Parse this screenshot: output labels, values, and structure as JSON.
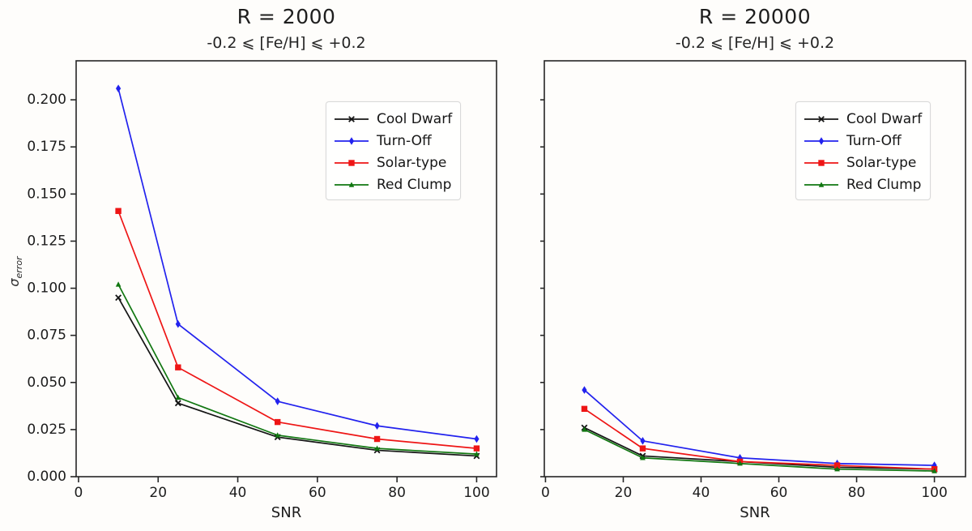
{
  "figure": {
    "background": "#fefdfb",
    "axis_color": "#262626",
    "tick_text_color": "#1c1c1c"
  },
  "chart_data": [
    {
      "type": "line",
      "title": "R = 2000",
      "subtitle": "-0.2 ⩽ [Fe/H] ⩽ +0.2",
      "xlabel": "SNR",
      "ylabel": "σ_error",
      "x": [
        10,
        25,
        50,
        75,
        100
      ],
      "xticks": [
        0,
        20,
        40,
        60,
        80,
        100
      ],
      "yticks": [
        "0.000",
        "0.025",
        "0.050",
        "0.075",
        "0.100",
        "0.125",
        "0.150",
        "0.175",
        "0.200"
      ],
      "xlim": [
        -0.6,
        105
      ],
      "ylim": [
        0,
        0.2207
      ],
      "grid": false,
      "show_y_tick_labels": true,
      "legend_position": "upper right",
      "series": [
        {
          "name": "Cool Dwarf",
          "color": "#141414",
          "marker": "x",
          "values": [
            0.095,
            0.039,
            0.021,
            0.014,
            0.011
          ]
        },
        {
          "name": "Turn-Off",
          "color": "#2222ee",
          "marker": "diamond",
          "values": [
            0.206,
            0.081,
            0.04,
            0.027,
            0.02
          ]
        },
        {
          "name": "Solar-type",
          "color": "#ee1515",
          "marker": "square",
          "values": [
            0.141,
            0.058,
            0.029,
            0.02,
            0.015
          ]
        },
        {
          "name": "Red Clump",
          "color": "#117711",
          "marker": "triangle",
          "values": [
            0.102,
            0.042,
            0.022,
            0.015,
            0.012
          ]
        }
      ]
    },
    {
      "type": "line",
      "title": "R = 20000",
      "subtitle": "-0.2 ⩽ [Fe/H] ⩽ +0.2",
      "xlabel": "SNR",
      "ylabel": "",
      "x": [
        10,
        25,
        50,
        75,
        100
      ],
      "xticks": [
        0,
        20,
        40,
        60,
        80,
        100
      ],
      "yticks": [
        "0.000",
        "0.025",
        "0.050",
        "0.075",
        "0.100",
        "0.125",
        "0.150",
        "0.175",
        "0.200"
      ],
      "xlim": [
        -0.3,
        108
      ],
      "ylim": [
        0,
        0.2207
      ],
      "grid": false,
      "show_y_tick_labels": false,
      "legend_position": "upper right",
      "series": [
        {
          "name": "Cool Dwarf",
          "color": "#141414",
          "marker": "x",
          "values": [
            0.026,
            0.011,
            0.008,
            0.005,
            0.004
          ]
        },
        {
          "name": "Turn-Off",
          "color": "#2222ee",
          "marker": "diamond",
          "values": [
            0.046,
            0.019,
            0.01,
            0.007,
            0.006
          ]
        },
        {
          "name": "Solar-type",
          "color": "#ee1515",
          "marker": "square",
          "values": [
            0.036,
            0.015,
            0.008,
            0.006,
            0.004
          ]
        },
        {
          "name": "Red Clump",
          "color": "#117711",
          "marker": "triangle",
          "values": [
            0.025,
            0.01,
            0.007,
            0.004,
            0.003
          ]
        }
      ]
    }
  ]
}
